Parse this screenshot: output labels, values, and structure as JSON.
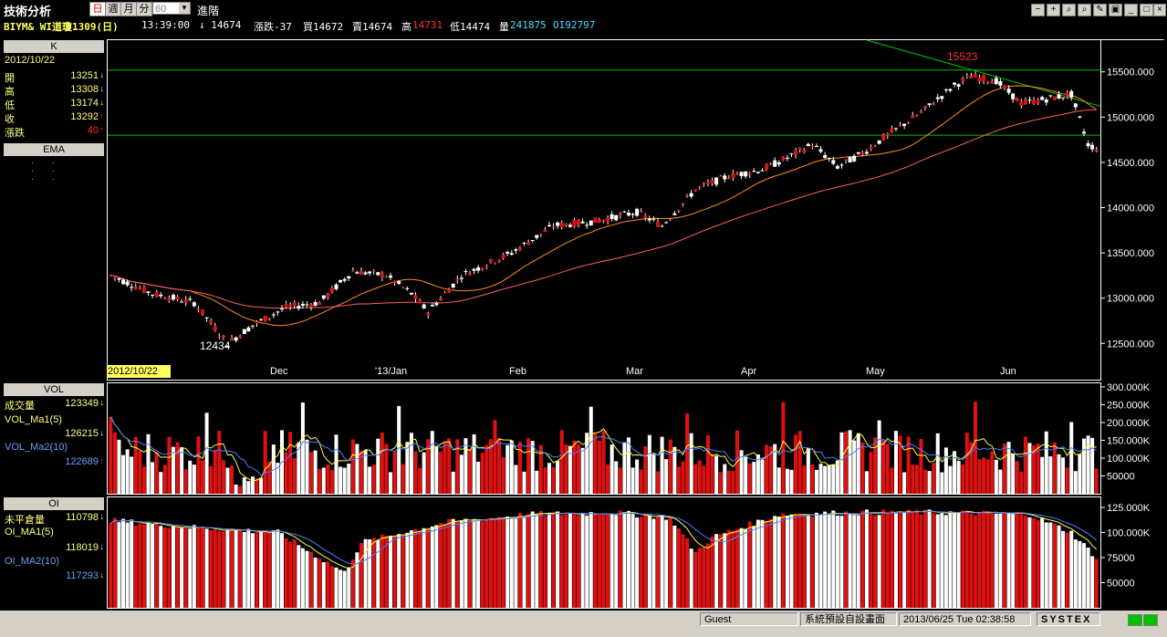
{
  "toolbar": {
    "title": "技術分析",
    "timeframes": [
      "日",
      "週",
      "月",
      "分"
    ],
    "period": "60",
    "advanced": "進階"
  },
  "quote": {
    "symbol": "BIYM& WI道瓊1309(日)",
    "time": "13:39:00",
    "last": "↓ 14674",
    "change": "漲跌-37",
    "bid": "買14672",
    "ask": "賣14674",
    "high_label": "高",
    "high": "14731",
    "low": "低14474",
    "volume_label": "量",
    "volume": "241875",
    "oi": "OI92797"
  },
  "k_panel": {
    "header": "K",
    "date": "2012/10/22",
    "rows": [
      {
        "label": "開",
        "value": "13251"
      },
      {
        "label": "高",
        "value": "13308"
      },
      {
        "label": "低",
        "value": "13174"
      },
      {
        "label": "收",
        "value": "13292"
      },
      {
        "label": "漲跌",
        "value": "40"
      }
    ],
    "ema_header": "EMA"
  },
  "vol_panel": {
    "header": "VOL",
    "rows": [
      {
        "label": "成交量",
        "value": "123349"
      },
      {
        "label": "VOL_Ma1(5)",
        "value": "126215"
      },
      {
        "label": "VOL_Ma2(10)",
        "value": "122689"
      }
    ]
  },
  "oi_panel": {
    "header": "OI",
    "rows": [
      {
        "label": "未平倉量",
        "value": "110798"
      },
      {
        "label": "OI_MA1(5)",
        "value": "118019"
      },
      {
        "label": "OI_MA2(10)",
        "value": "117293"
      }
    ]
  },
  "chart_data": {
    "type": "candlestick",
    "price_axis": [
      "15500.000",
      "15000.000",
      "14500.000",
      "14000.000",
      "13500.000",
      "13000.000",
      "12500.000"
    ],
    "x_labels": [
      "2012/10/22",
      "Dec",
      "'13/Jan",
      "Feb",
      "Mar",
      "Apr",
      "May",
      "Jun"
    ],
    "annotations": {
      "high": "15523",
      "low": "12434"
    },
    "ylim": [
      12100,
      15850
    ],
    "ma_fast_color": "#ff8c1a",
    "ma_slow_color": "#ff6060",
    "trendline_color": "#00c000",
    "vol_axis": [
      "300.000K",
      "250.000K",
      "200.000K",
      "150.000K",
      "100.000K",
      "50000"
    ],
    "oi_axis": [
      "125.000K",
      "100.000K",
      "75000",
      "50000"
    ]
  },
  "status": {
    "user": "Guest",
    "layout": "系統預設自設畫面",
    "datetime": "2013/06/25 Tue 02:38:58",
    "brand": "SYSTEX"
  }
}
